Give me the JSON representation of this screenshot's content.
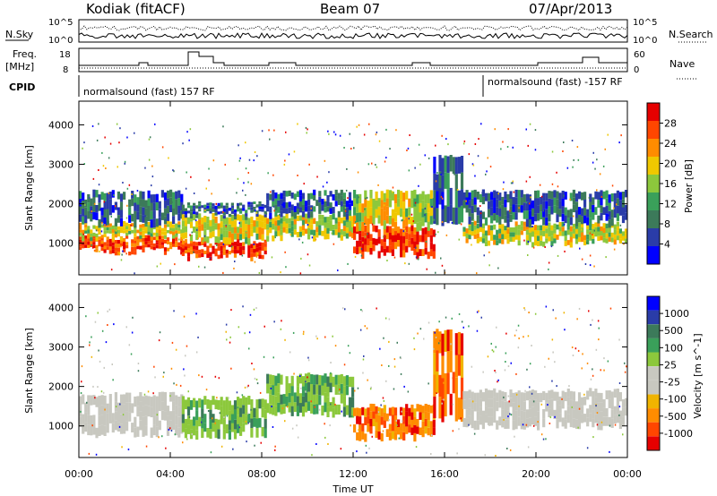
{
  "header": {
    "title_left": "Kodiak (fitACF)",
    "title_center": "Beam 07",
    "title_right": "07/Apr/2013"
  },
  "params": {
    "nsky_label": "N.Sky",
    "nsearch_label": "N.Search",
    "nsky_ticks": [
      "10^5",
      "10^0"
    ],
    "nsearch_ticks": [
      "10^5",
      "10^0"
    ],
    "freq_label_1": "Freq.",
    "freq_label_2": "[MHz]",
    "freq_ticks": [
      "18",
      "8"
    ],
    "nave_label": "Nave",
    "nave_ticks": [
      "60",
      "0"
    ],
    "cpid_label": "CPID",
    "cpid_1": "normalsound (fast) 157 RF",
    "cpid_2": "normalsound (fast) -157 RF"
  },
  "colors": {
    "power": [
      "#0000ff",
      "#2a3ca8",
      "#3c7a5a",
      "#3aa05a",
      "#8cc83c",
      "#f0c800",
      "#ff8c00",
      "#ff4600",
      "#e60000"
    ],
    "velocity": [
      "#e60000",
      "#ff4600",
      "#ff8c00",
      "#f0b400",
      "#c8c8c0",
      "#c8c8c0",
      "#8cc83c",
      "#3aa05a",
      "#3c7a5a",
      "#2a3ca8",
      "#0000ff"
    ]
  },
  "chart_data": [
    {
      "type": "heatmap",
      "panel": "power",
      "ylabel": "Slant Range [km]",
      "yticks": [
        "1000",
        "2000",
        "3000",
        "4000"
      ],
      "ylim": [
        200,
        4600
      ],
      "colorbar_label": "Power [dB]",
      "colorbar_ticks": [
        "4",
        "8",
        "12",
        "16",
        "20",
        "24",
        "28"
      ],
      "xlim": [
        0,
        24
      ],
      "bands": [
        {
          "t0": 0.0,
          "t1": 4.5,
          "r0": 800,
          "r1": 1150,
          "level": "high"
        },
        {
          "t0": 0.0,
          "t1": 4.5,
          "r0": 1150,
          "r1": 1500,
          "level": "mid"
        },
        {
          "t0": 0.0,
          "t1": 4.5,
          "r0": 1500,
          "r1": 2300,
          "level": "low"
        },
        {
          "t0": 4.5,
          "t1": 8.2,
          "r0": 650,
          "r1": 1050,
          "level": "high"
        },
        {
          "t0": 4.5,
          "t1": 8.2,
          "r0": 1050,
          "r1": 1700,
          "level": "mid"
        },
        {
          "t0": 4.5,
          "t1": 8.2,
          "r0": 1700,
          "r1": 2000,
          "level": "low"
        },
        {
          "t0": 8.2,
          "t1": 12.0,
          "r0": 1150,
          "r1": 1700,
          "level": "mid"
        },
        {
          "t0": 8.2,
          "t1": 12.0,
          "r0": 1700,
          "r1": 2300,
          "level": "low"
        },
        {
          "t0": 12.0,
          "t1": 15.5,
          "r0": 700,
          "r1": 1400,
          "level": "high"
        },
        {
          "t0": 12.0,
          "t1": 15.5,
          "r0": 1400,
          "r1": 2300,
          "level": "mid"
        },
        {
          "t0": 15.5,
          "t1": 16.8,
          "r0": 1500,
          "r1": 3200,
          "level": "low"
        },
        {
          "t0": 16.8,
          "t1": 24.0,
          "r0": 1000,
          "r1": 1500,
          "level": "mid"
        },
        {
          "t0": 16.8,
          "t1": 24.0,
          "r0": 1500,
          "r1": 2300,
          "level": "low"
        }
      ]
    },
    {
      "type": "heatmap",
      "panel": "velocity",
      "xlabel": "Time UT",
      "xticks": [
        "00:00",
        "04:00",
        "08:00",
        "12:00",
        "16:00",
        "20:00",
        "00:00"
      ],
      "ylabel": "Slant Range [km]",
      "yticks": [
        "1000",
        "2000",
        "3000",
        "4000"
      ],
      "ylim": [
        200,
        4600
      ],
      "colorbar_label": "Velocity [m s^-1]",
      "colorbar_ticks": [
        "1000",
        "500",
        "100",
        "25",
        "-25",
        "-100",
        "-500",
        "-1000"
      ],
      "xlim": [
        0,
        24
      ],
      "bands": [
        {
          "t0": 0.0,
          "t1": 4.5,
          "r0": 800,
          "r1": 1800,
          "level": "ground"
        },
        {
          "t0": 4.5,
          "t1": 8.2,
          "r0": 750,
          "r1": 1700,
          "level": "green"
        },
        {
          "t0": 8.2,
          "t1": 12.0,
          "r0": 1300,
          "r1": 2300,
          "level": "green"
        },
        {
          "t0": 12.0,
          "t1": 15.5,
          "r0": 700,
          "r1": 1500,
          "level": "orange"
        },
        {
          "t0": 15.5,
          "t1": 16.8,
          "r0": 1200,
          "r1": 3400,
          "level": "orange"
        },
        {
          "t0": 16.8,
          "t1": 24.0,
          "r0": 1000,
          "r1": 1900,
          "level": "ground"
        }
      ]
    }
  ]
}
